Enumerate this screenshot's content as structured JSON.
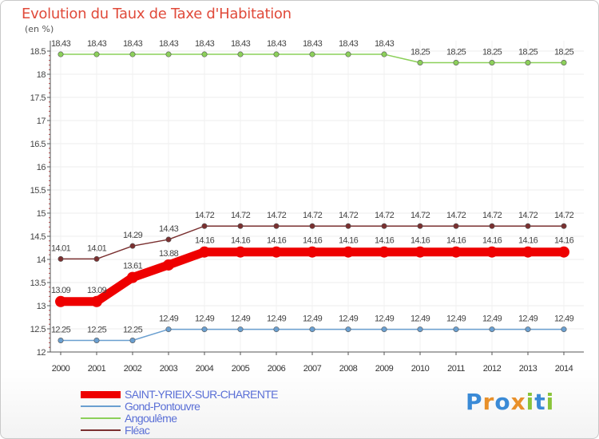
{
  "chart_data": {
    "type": "line",
    "title": "Evolution du Taux de Taxe d'Habitation",
    "ylabel": "(en %)",
    "xlabel": "",
    "ylim": [
      12,
      18.5
    ],
    "yticks": [
      "12",
      "12.5",
      "13",
      "13.5",
      "14",
      "14.5",
      "15",
      "15.5",
      "16",
      "16.5",
      "17",
      "17.5",
      "18",
      "18.5"
    ],
    "categories": [
      "2000",
      "2001",
      "2002",
      "2003",
      "2004",
      "2005",
      "2006",
      "2007",
      "2008",
      "2009",
      "2010",
      "2011",
      "2012",
      "2013",
      "2014"
    ],
    "series": [
      {
        "name": "SAINT-YRIEIX-SUR-CHARENTE",
        "color": "#ee0000",
        "values": [
          13.09,
          13.09,
          13.61,
          13.88,
          14.16,
          14.16,
          14.16,
          14.16,
          14.16,
          14.16,
          14.16,
          14.16,
          14.16,
          14.16,
          14.16
        ],
        "labels": [
          "13.09",
          "13.09",
          "13.61",
          "13.88",
          "14.16",
          "14.16",
          "14.16",
          "14.16",
          "14.16",
          "14.16",
          "14.16",
          "14.16",
          "14.16",
          "14.16",
          "14.16"
        ]
      },
      {
        "name": "Gond-Pontouvre",
        "color": "#6a9fd0",
        "values": [
          12.25,
          12.25,
          12.25,
          12.49,
          12.49,
          12.49,
          12.49,
          12.49,
          12.49,
          12.49,
          12.49,
          12.49,
          12.49,
          12.49,
          12.49
        ],
        "labels": [
          "12.25",
          "12.25",
          "12.25",
          "12.49",
          "12.49",
          "12.49",
          "12.49",
          "12.49",
          "12.49",
          "12.49",
          "12.49",
          "12.49",
          "12.49",
          "12.49",
          "12.49"
        ]
      },
      {
        "name": "Angoulême",
        "color": "#8cd05a",
        "values": [
          18.43,
          18.43,
          18.43,
          18.43,
          18.43,
          18.43,
          18.43,
          18.43,
          18.43,
          18.43,
          18.25,
          18.25,
          18.25,
          18.25,
          18.25
        ],
        "labels": [
          "18.43",
          "18.43",
          "18.43",
          "18.43",
          "18.43",
          "18.43",
          "18.43",
          "18.43",
          "18.43",
          "18.43",
          "18.25",
          "18.25",
          "18.25",
          "18.25",
          "18.25"
        ]
      },
      {
        "name": "Fléac",
        "color": "#7a3030",
        "values": [
          14.01,
          14.01,
          14.29,
          14.43,
          14.72,
          14.72,
          14.72,
          14.72,
          14.72,
          14.72,
          14.72,
          14.72,
          14.72,
          14.72,
          14.72
        ],
        "labels": [
          "14.01",
          "14.01",
          "14.29",
          "14.43",
          "14.72",
          "14.72",
          "14.72",
          "14.72",
          "14.72",
          "14.72",
          "14.72",
          "14.72",
          "14.72",
          "14.72",
          "14.72"
        ]
      }
    ]
  },
  "logo": {
    "text": [
      "P",
      "r",
      "o",
      "x",
      "i",
      "t",
      "i"
    ]
  }
}
